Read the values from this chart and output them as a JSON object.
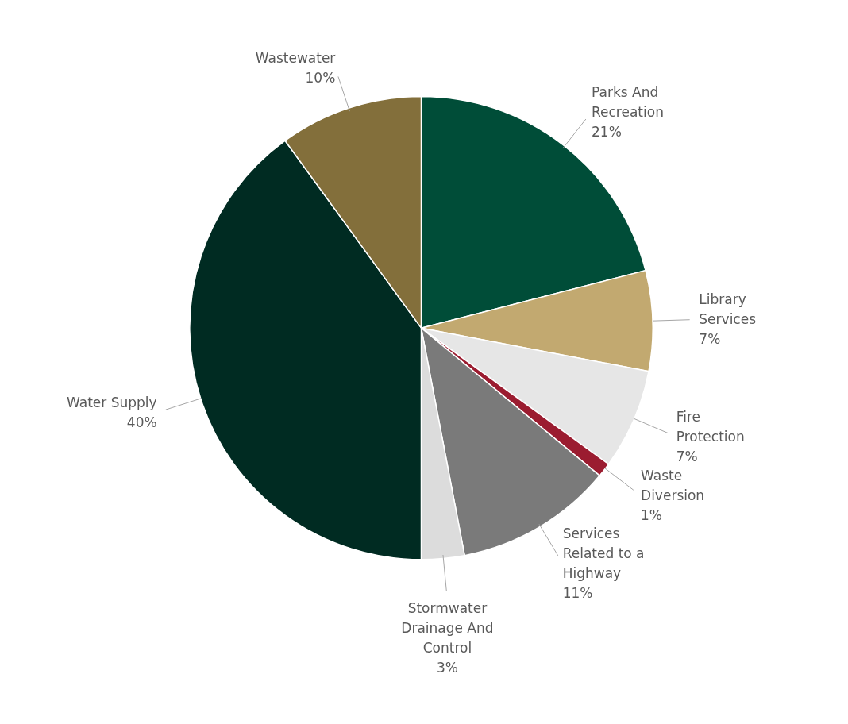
{
  "chart_data": {
    "type": "pie",
    "categories": [
      "Parks And Recreation",
      "Library Services",
      "Fire Protection",
      "Waste Diversion",
      "Services Related to a Highway",
      "Stormwater Drainage And Control",
      "Water Supply",
      "Wastewater"
    ],
    "values": [
      21,
      7,
      7,
      1,
      11,
      3,
      40,
      10
    ],
    "colors": [
      "#004d38",
      "#c2a970",
      "#e6e6e6",
      "#9b1c30",
      "#7a7a7a",
      "#dcdcdc",
      "#002b22",
      "#836f3b"
    ],
    "value_labels": [
      "21%",
      "7%",
      "7%",
      "1%",
      "11%",
      "3%",
      "40%",
      "10%"
    ]
  }
}
